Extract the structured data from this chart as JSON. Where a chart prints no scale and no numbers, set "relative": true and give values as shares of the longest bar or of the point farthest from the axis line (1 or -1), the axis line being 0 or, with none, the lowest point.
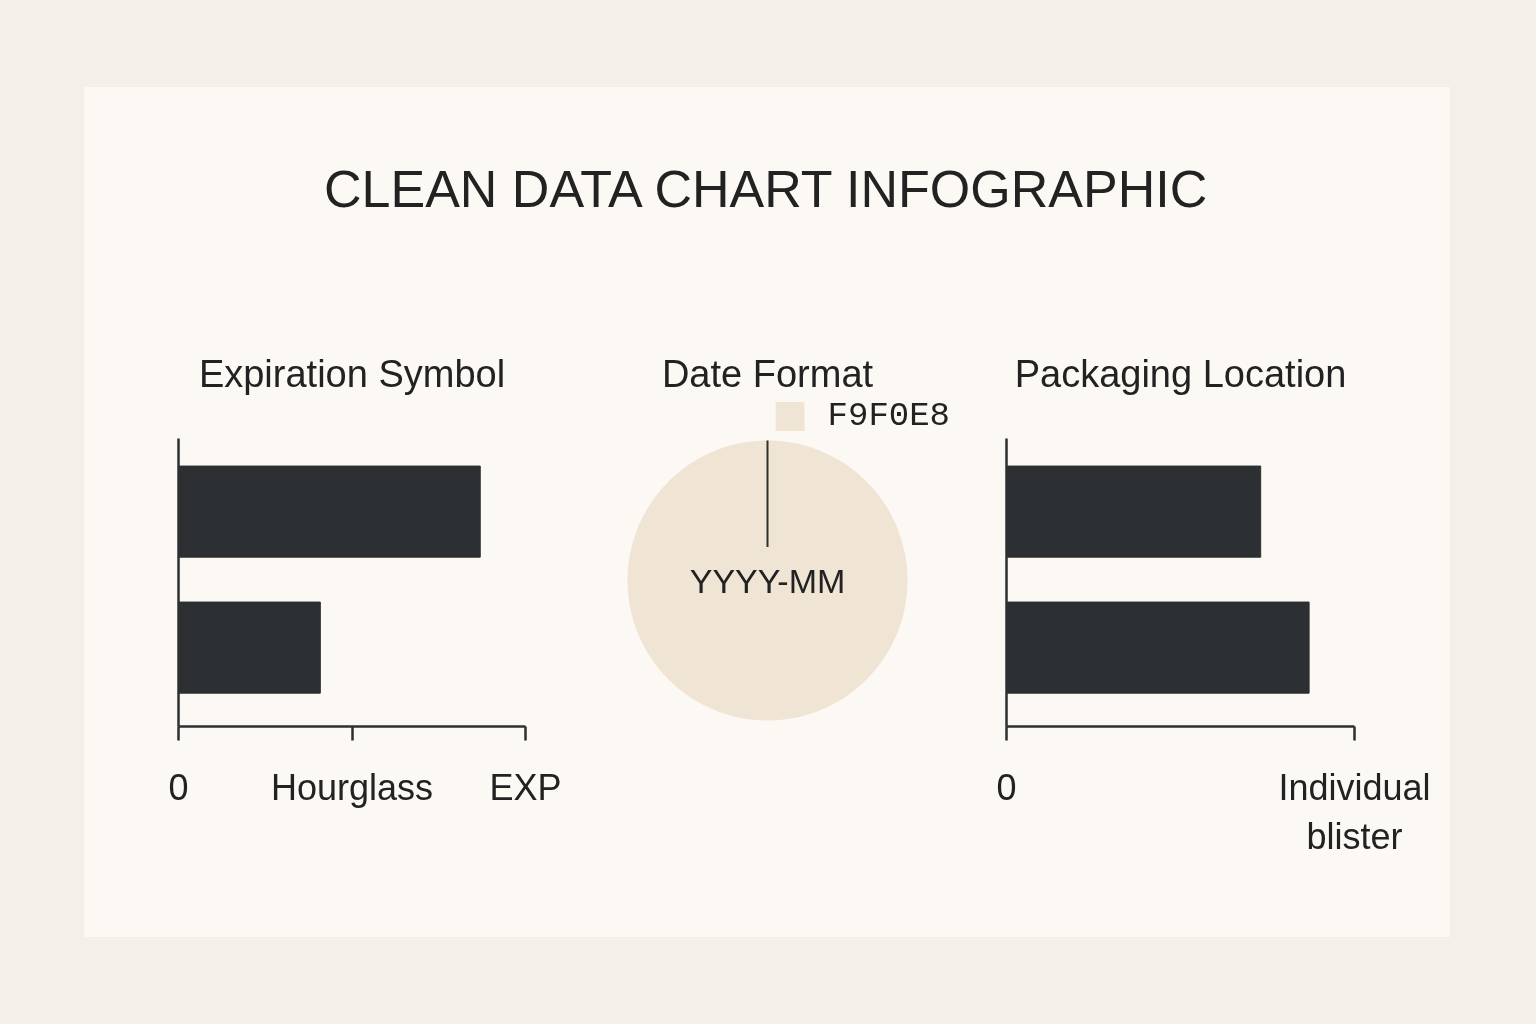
{
  "chart_data": [
    {
      "type": "other",
      "title": "CLEAN DATA CHART INFOGRAPHIC"
    },
    {
      "type": "bar",
      "title": "Expiration Symbol",
      "orientation": "horizontal",
      "relative": true,
      "categories": [
        null,
        null
      ],
      "values": [
        1,
        0.47
      ],
      "color": "#2d3032",
      "annotations": [
        "0",
        "Hourglass",
        "EXP"
      ]
    },
    {
      "type": "pie",
      "title": "Date Format",
      "categories": [
        "YYYY-MM"
      ],
      "series": [
        {
          "name": "F9F0E8",
          "color": "#f0e4d4",
          "values": [
            100
          ]
        }
      ],
      "legend": "top right"
    },
    {
      "type": "bar",
      "title": "Packaging Location",
      "orientation": "horizontal",
      "relative": true,
      "categories": [
        null,
        null
      ],
      "values": [
        0.84,
        1
      ],
      "color": "#2d3032",
      "annotations": [
        "0",
        "Individual blister"
      ]
    }
  ]
}
